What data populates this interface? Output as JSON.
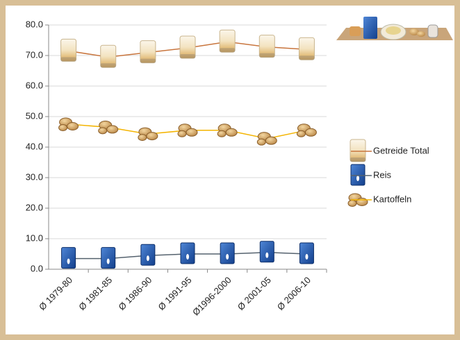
{
  "chart_data": {
    "type": "line",
    "categories": [
      "Ø 1979-80",
      "Ø 1981-85",
      "Ø 1986-90",
      "Ø 1991-95",
      "Ø1996-2000",
      "Ø 2001-05",
      "Ø 2006-10"
    ],
    "series": [
      {
        "name": "Getreide Total",
        "color": "#c8743c",
        "values": [
          71.5,
          69.5,
          71.0,
          72.5,
          74.5,
          72.8,
          72.0
        ]
      },
      {
        "name": "Reis",
        "color": "#55626e",
        "values": [
          3.5,
          3.5,
          4.5,
          5.0,
          5.0,
          5.5,
          5.0
        ]
      },
      {
        "name": "Kartoffeln",
        "color": "#f4b400",
        "values": [
          47.5,
          46.5,
          44.3,
          45.5,
          45.5,
          42.8,
          45.5
        ]
      }
    ],
    "ylim": [
      0,
      80
    ],
    "yticks": [
      {
        "value": 0,
        "label": "0.0"
      },
      {
        "value": 10,
        "label": "10.0"
      },
      {
        "value": 20,
        "label": "20.0"
      },
      {
        "value": 30,
        "label": "30.0"
      },
      {
        "value": 40,
        "label": "40.0"
      },
      {
        "value": 50,
        "label": "50.0"
      },
      {
        "value": 60,
        "label": "60.0"
      },
      {
        "value": 70,
        "label": "70.0"
      },
      {
        "value": 80,
        "label": "80.0"
      }
    ],
    "grid": true
  }
}
